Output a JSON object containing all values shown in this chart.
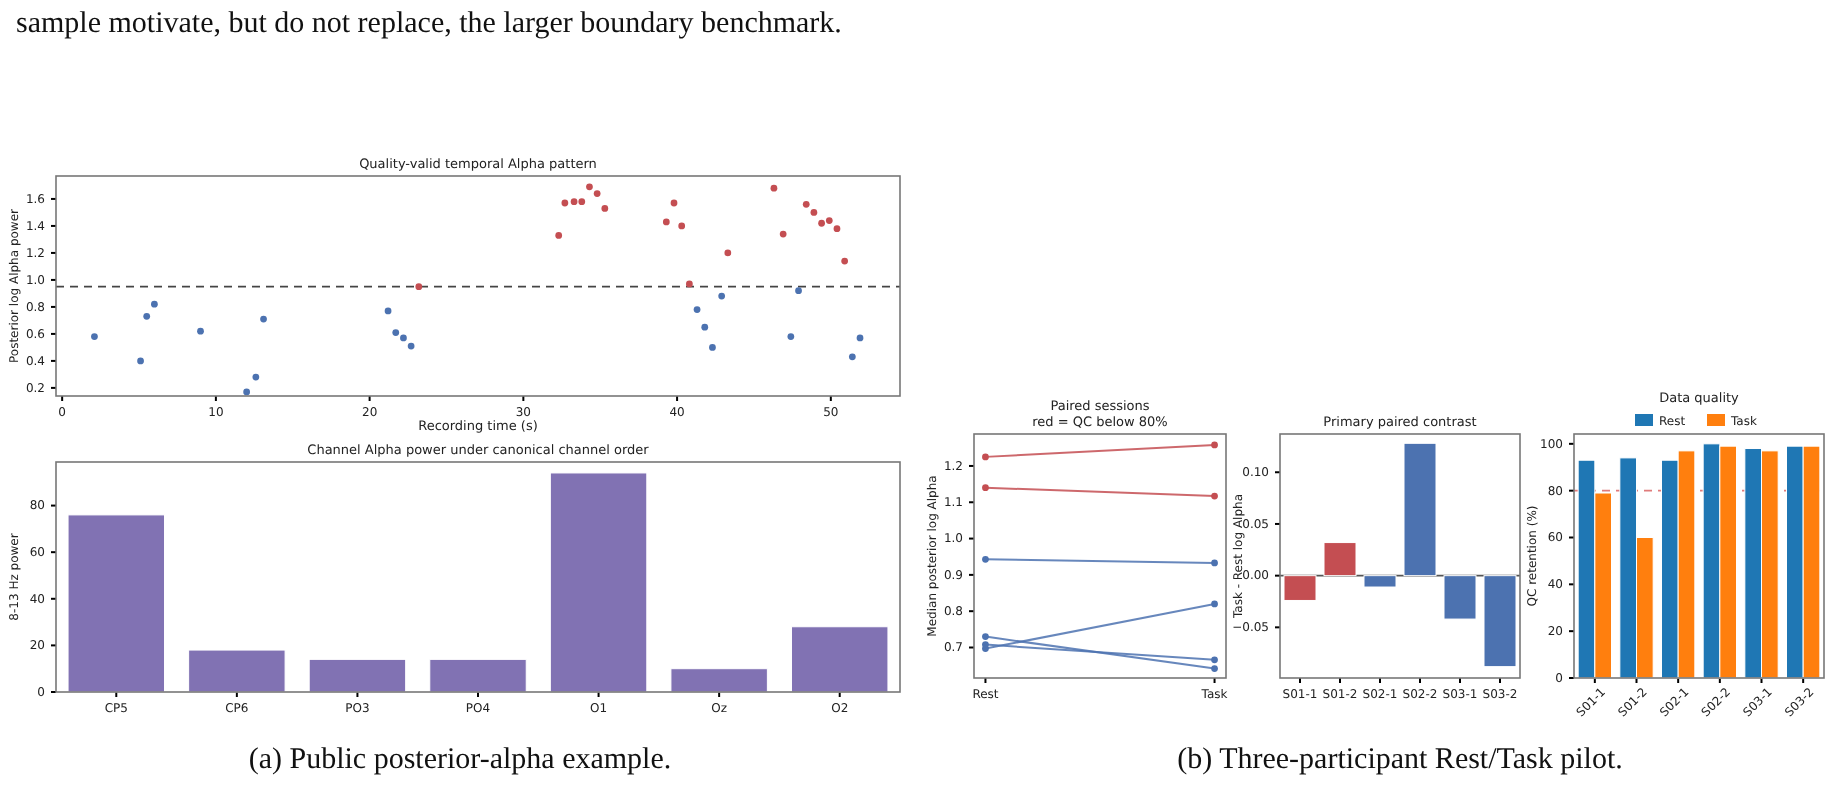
{
  "chart_data": [
    {
      "type": "scatter",
      "title": "Quality-valid temporal Alpha pattern",
      "xlabel": "Recording time (s)",
      "ylabel": "Posterior log Alpha power",
      "annotations": [
        "sample motivate, but do not replace, the larger boundary benchmark."
      ],
      "marker": "circle",
      "series": [
        {
          "color": "#4c72b0",
          "x": [
            2.1,
            5.1,
            5.5,
            6.0,
            9.0,
            12.0,
            12.6,
            13.1,
            21.2,
            21.7,
            22.2,
            22.7,
            41.3,
            41.8,
            42.3,
            42.9,
            47.4,
            47.9,
            51.4,
            51.9
          ],
          "values": [
            0.58,
            0.4,
            0.73,
            0.82,
            0.62,
            0.17,
            0.28,
            0.71,
            0.77,
            0.61,
            0.57,
            0.51,
            0.78,
            0.65,
            0.5,
            0.88,
            0.58,
            0.92,
            0.43,
            0.57
          ]
        },
        {
          "color": "#c44e52",
          "x": [
            23.2,
            32.3,
            32.7,
            33.3,
            33.8,
            34.3,
            34.8,
            35.3,
            39.3,
            39.8,
            40.3,
            40.8,
            43.3,
            46.3,
            46.9,
            48.4,
            48.9,
            49.4,
            49.9,
            50.4,
            50.9
          ],
          "values": [
            0.95,
            1.33,
            1.57,
            1.58,
            1.58,
            1.69,
            1.64,
            1.53,
            1.43,
            1.57,
            1.4,
            0.97,
            1.2,
            1.68,
            1.34,
            1.56,
            1.5,
            1.42,
            1.44,
            1.38,
            1.14
          ]
        }
      ],
      "xlim": [
        -0.4,
        54.5
      ],
      "xticks": [
        0,
        10,
        20,
        30,
        40,
        50
      ],
      "ylim": [
        0.14,
        1.77
      ],
      "yticks": [
        {
          "value": 0.2,
          "label": "0.2"
        },
        {
          "value": 0.4,
          "label": "0.4"
        },
        {
          "value": 0.6,
          "label": "0.6"
        },
        {
          "value": 0.8,
          "label": "0.8"
        },
        {
          "value": 1.0,
          "label": "1.0"
        },
        {
          "value": 1.2,
          "label": "1.2"
        },
        {
          "value": 1.4,
          "label": "1.4"
        },
        {
          "value": 1.6,
          "label": "1.6"
        }
      ],
      "ref_lines": [
        {
          "axis": "y",
          "value": 0.95,
          "color": "#444444",
          "line_style": "dashed"
        }
      ]
    },
    {
      "type": "bar",
      "title": "Channel Alpha power under canonical channel order",
      "ylabel": "8-13 Hz power",
      "annotations": [
        "(a) Public posterior-alpha example."
      ],
      "categories": [
        "CP5",
        "CP6",
        "PO3",
        "PO4",
        "O1",
        "Oz",
        "O2"
      ],
      "values": [
        76,
        18,
        14,
        14,
        94,
        10,
        28
      ],
      "color": "#8172b3",
      "ylim": [
        0,
        98.7
      ],
      "yticks": [
        0,
        20,
        40,
        60,
        80
      ]
    },
    {
      "type": "line",
      "title": "Paired sessions",
      "subtitle": "red = QC below 80%",
      "ylabel": "Median posterior log Alpha",
      "categories": [
        "Rest",
        "Task"
      ],
      "marker": "circle",
      "series": [
        {
          "color": "#c44e52",
          "values": [
            1.225,
            1.258
          ]
        },
        {
          "color": "#c44e52",
          "values": [
            1.14,
            1.117
          ]
        },
        {
          "color": "#4c72b0",
          "values": [
            0.943,
            0.933
          ]
        },
        {
          "color": "#4c72b0",
          "values": [
            0.697,
            0.82
          ]
        },
        {
          "color": "#4c72b0",
          "values": [
            0.73,
            0.642
          ]
        },
        {
          "color": "#4c72b0",
          "values": [
            0.708,
            0.666
          ]
        }
      ],
      "ylim": [
        0.616,
        1.288
      ],
      "yticks": [
        {
          "value": 0.7,
          "label": "0.7"
        },
        {
          "value": 0.8,
          "label": "0.8"
        },
        {
          "value": 0.9,
          "label": "0.9"
        },
        {
          "value": 1.0,
          "label": "1.0"
        },
        {
          "value": 1.1,
          "label": "1.1"
        },
        {
          "value": 1.2,
          "label": "1.2"
        }
      ]
    },
    {
      "type": "bar",
      "title": "Primary paired contrast",
      "ylabel": "Task - Rest log Alpha",
      "categories": [
        "S01-1",
        "S01-2",
        "S02-1",
        "S02-2",
        "S03-1",
        "S03-2"
      ],
      "values": [
        -0.024,
        0.032,
        -0.011,
        0.128,
        -0.042,
        -0.088
      ],
      "colors": [
        "#c44e52",
        "#c44e52",
        "#4c72b0",
        "#4c72b0",
        "#4c72b0",
        "#4c72b0"
      ],
      "ylim": [
        -0.099,
        0.137
      ],
      "yticks": [
        {
          "value": -0.05,
          "label": "−0.05"
        },
        {
          "value": 0,
          "label": "0.00"
        },
        {
          "value": 0.05,
          "label": "0.05"
        },
        {
          "value": 0.1,
          "label": "0.10"
        }
      ],
      "ref_lines": [
        {
          "axis": "y",
          "value": 0,
          "color": "#555555",
          "line_style": "solid"
        }
      ]
    },
    {
      "type": "bar",
      "title": "Data quality",
      "ylabel": "QC retention (%)",
      "annotations": [
        "(b) Three-participant Rest/Task pilot."
      ],
      "categories": [
        "S01-1",
        "S01-2",
        "S02-1",
        "S02-2",
        "S03-1",
        "S03-2"
      ],
      "series": [
        {
          "name": "Rest",
          "color": "#1f77b4",
          "values": [
            93,
            94,
            93,
            100,
            98,
            99
          ]
        },
        {
          "name": "Task",
          "color": "#ff7f0e",
          "values": [
            79,
            60,
            97,
            99,
            97,
            99
          ]
        }
      ],
      "ylim": [
        0,
        104.2
      ],
      "yticks": [
        0,
        20,
        40,
        60,
        80,
        100
      ],
      "legend": "top",
      "ref_lines": [
        {
          "axis": "y",
          "value": 80,
          "color": "#e07b7b",
          "line_style": "dashed"
        }
      ]
    }
  ]
}
